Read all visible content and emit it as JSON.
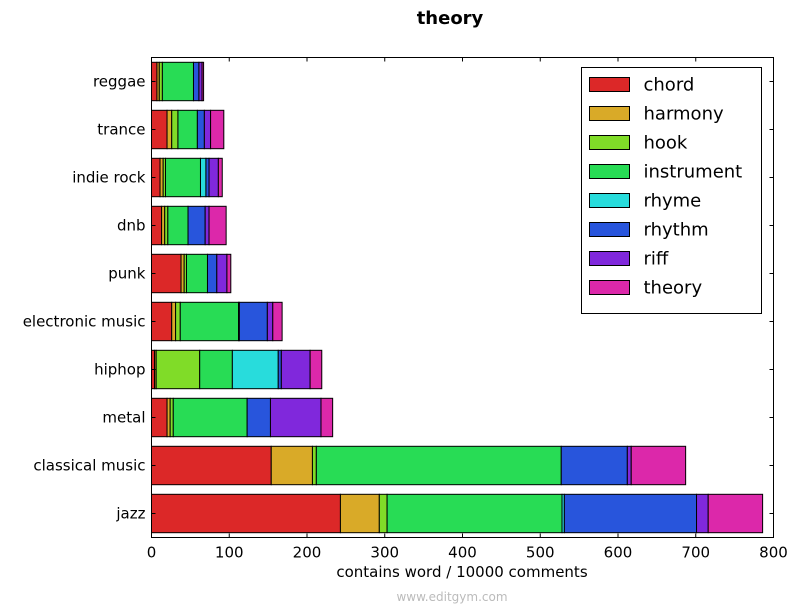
{
  "chart_data": {
    "type": "bar",
    "orientation": "horizontal",
    "stacked": true,
    "title": "theory",
    "xlabel": "contains word / 10000 comments",
    "ylabel": "",
    "xlim": [
      0,
      800
    ],
    "xticks": [
      "0",
      "100",
      "200",
      "300",
      "400",
      "500",
      "600",
      "700",
      "800"
    ],
    "legend_position": "top-right",
    "categories": [
      "jazz",
      "classical music",
      "metal",
      "hiphop",
      "electronic music",
      "punk",
      "dnb",
      "indie rock",
      "trance",
      "reggae"
    ],
    "series": [
      {
        "name": "chord",
        "color": "#dc2828",
        "values": [
          243,
          154,
          20,
          4,
          26,
          38,
          13,
          11,
          20,
          7
        ]
      },
      {
        "name": "harmony",
        "color": "#d9aa28",
        "values": [
          50,
          53,
          4,
          2,
          5,
          4,
          4,
          4,
          6,
          3
        ]
      },
      {
        "name": "hook",
        "color": "#80dc28",
        "values": [
          10,
          5,
          4,
          56,
          6,
          3,
          4,
          3,
          8,
          4
        ]
      },
      {
        "name": "instrument",
        "color": "#28dc55",
        "values": [
          225,
          315,
          95,
          42,
          75,
          27,
          26,
          45,
          25,
          40
        ]
      },
      {
        "name": "rhyme",
        "color": "#28dcdc",
        "values": [
          3,
          0,
          0,
          59,
          1,
          0,
          0,
          7,
          0,
          0
        ]
      },
      {
        "name": "rhythm",
        "color": "#2855dc",
        "values": [
          170,
          85,
          30,
          4,
          36,
          12,
          22,
          4,
          9,
          7
        ]
      },
      {
        "name": "riff",
        "color": "#8028dc",
        "values": [
          15,
          5,
          65,
          37,
          7,
          13,
          5,
          12,
          8,
          4
        ]
      },
      {
        "name": "theory",
        "color": "#dc28aa",
        "values": [
          70,
          70,
          15,
          15,
          12,
          5,
          22,
          5,
          17,
          2
        ]
      }
    ]
  },
  "watermark": "www.editgym.com"
}
